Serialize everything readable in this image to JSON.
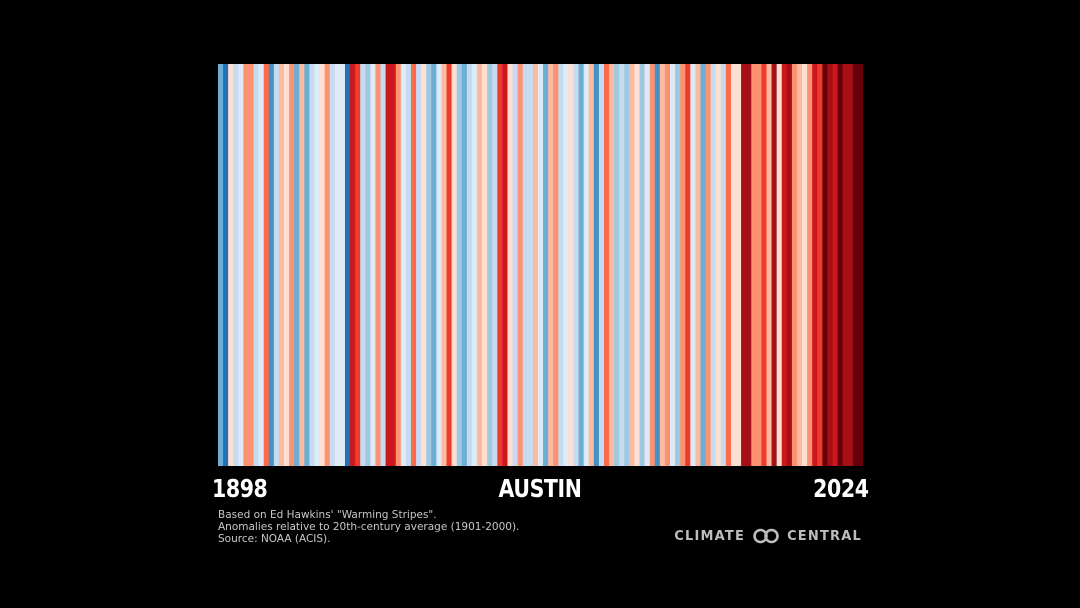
{
  "chart_data": {
    "type": "heatmap",
    "title": "AUSTIN",
    "x_start_label": "1898",
    "x_end_label": "2024",
    "x_start": 1898,
    "x_end": 2024,
    "encoding": "warming-stripes",
    "values": [
      -0.7,
      -0.95,
      0.05,
      -0.35,
      -0.05,
      0.35,
      0.45,
      -0.25,
      -0.15,
      0.55,
      -0.85,
      -0.2,
      0.2,
      0.1,
      0.45,
      -0.55,
      0.3,
      -0.65,
      -0.2,
      -0.1,
      0.05,
      0.4,
      -0.3,
      -0.15,
      -0.05,
      -1.0,
      0.9,
      0.8,
      -0.3,
      -0.5,
      -0.15,
      0.45,
      -0.2,
      0.95,
      1.0,
      0.4,
      -0.1,
      -0.25,
      0.55,
      -0.35,
      0.05,
      -0.4,
      -0.55,
      -0.15,
      0.2,
      0.85,
      0.1,
      -0.45,
      -0.55,
      -0.2,
      -0.05,
      0.2,
      0.1,
      -0.45,
      -0.25,
      0.8,
      0.95,
      0.15,
      -0.35,
      0.45,
      -0.25,
      -0.35,
      0.3,
      -0.05,
      -0.55,
      0.2,
      0.35,
      -0.25,
      -0.15,
      0.05,
      -0.3,
      -0.55,
      -0.15,
      0.2,
      -0.75,
      -0.2,
      0.55,
      0.3,
      -0.5,
      -0.25,
      -0.4,
      0.3,
      0.1,
      -0.45,
      -0.15,
      0.4,
      -0.75,
      0.25,
      0.45,
      -0.15,
      -0.45,
      0.35,
      0.8,
      -0.1,
      0.2,
      -0.55,
      0.4,
      -0.25,
      0.15,
      -0.2,
      0.6,
      0.05,
      0.1,
      1.05,
      1.15,
      0.45,
      0.35,
      0.8,
      0.3,
      1.15,
      0.15,
      0.9,
      1.2,
      0.45,
      0.2,
      0.1,
      0.4,
      1.0,
      0.7,
      1.25,
      1.1,
      0.95,
      1.3,
      1.05,
      1.2,
      1.4,
      1.35
    ],
    "colors": {
      "blues": [
        "#08306b",
        "#08519c",
        "#2171b5",
        "#4292c6",
        "#6baed6",
        "#9ecae1",
        "#c6dbef",
        "#deebf7"
      ],
      "reds": [
        "#fee0d2",
        "#fcbba1",
        "#fc9272",
        "#fb6a4a",
        "#ef3b2c",
        "#cb181d",
        "#a50f15",
        "#67000d"
      ]
    }
  },
  "credits": {
    "line1": "Based on Ed Hawkins' \"Warming Stripes\".",
    "line2": "Anomalies relative to 20th-century average (1901-2000).",
    "line3": "Source: NOAA (ACIS)."
  },
  "logo": {
    "left_text": "CLIMATE",
    "right_text": "CENTRAL",
    "icon": "infinity-rings-icon",
    "color": "#bdbdbd"
  }
}
